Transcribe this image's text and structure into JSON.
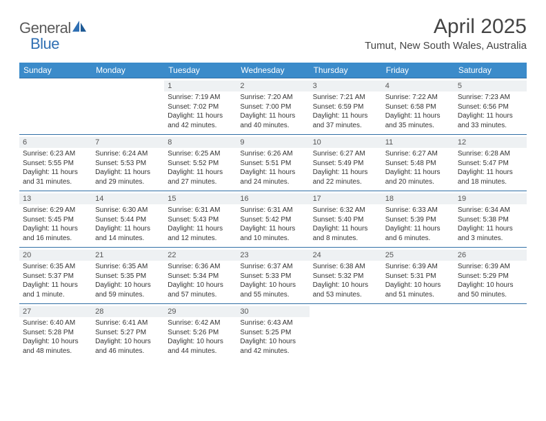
{
  "logo": {
    "part1": "General",
    "part2": "Blue"
  },
  "title": "April 2025",
  "location": "Tumut, New South Wales, Australia",
  "colors": {
    "header_bg": "#3b8bca",
    "header_text": "#ffffff",
    "row_border": "#2e6da4",
    "daynum_bg": "#eef1f3",
    "body_text": "#333333",
    "logo_grey": "#5a5a5a",
    "logo_blue": "#2f6fb3",
    "background": "#ffffff"
  },
  "typography": {
    "title_fontsize": 30,
    "location_fontsize": 15,
    "weekday_fontsize": 12,
    "daynum_fontsize": 11,
    "cell_fontsize": 10
  },
  "weekdays": [
    "Sunday",
    "Monday",
    "Tuesday",
    "Wednesday",
    "Thursday",
    "Friday",
    "Saturday"
  ],
  "weeks": [
    [
      {
        "day": "",
        "sunrise": "",
        "sunset": "",
        "daylight1": "",
        "daylight2": "",
        "empty": true
      },
      {
        "day": "",
        "sunrise": "",
        "sunset": "",
        "daylight1": "",
        "daylight2": "",
        "empty": true
      },
      {
        "day": "1",
        "sunrise": "Sunrise: 7:19 AM",
        "sunset": "Sunset: 7:02 PM",
        "daylight1": "Daylight: 11 hours",
        "daylight2": "and 42 minutes."
      },
      {
        "day": "2",
        "sunrise": "Sunrise: 7:20 AM",
        "sunset": "Sunset: 7:00 PM",
        "daylight1": "Daylight: 11 hours",
        "daylight2": "and 40 minutes."
      },
      {
        "day": "3",
        "sunrise": "Sunrise: 7:21 AM",
        "sunset": "Sunset: 6:59 PM",
        "daylight1": "Daylight: 11 hours",
        "daylight2": "and 37 minutes."
      },
      {
        "day": "4",
        "sunrise": "Sunrise: 7:22 AM",
        "sunset": "Sunset: 6:58 PM",
        "daylight1": "Daylight: 11 hours",
        "daylight2": "and 35 minutes."
      },
      {
        "day": "5",
        "sunrise": "Sunrise: 7:23 AM",
        "sunset": "Sunset: 6:56 PM",
        "daylight1": "Daylight: 11 hours",
        "daylight2": "and 33 minutes."
      }
    ],
    [
      {
        "day": "6",
        "sunrise": "Sunrise: 6:23 AM",
        "sunset": "Sunset: 5:55 PM",
        "daylight1": "Daylight: 11 hours",
        "daylight2": "and 31 minutes."
      },
      {
        "day": "7",
        "sunrise": "Sunrise: 6:24 AM",
        "sunset": "Sunset: 5:53 PM",
        "daylight1": "Daylight: 11 hours",
        "daylight2": "and 29 minutes."
      },
      {
        "day": "8",
        "sunrise": "Sunrise: 6:25 AM",
        "sunset": "Sunset: 5:52 PM",
        "daylight1": "Daylight: 11 hours",
        "daylight2": "and 27 minutes."
      },
      {
        "day": "9",
        "sunrise": "Sunrise: 6:26 AM",
        "sunset": "Sunset: 5:51 PM",
        "daylight1": "Daylight: 11 hours",
        "daylight2": "and 24 minutes."
      },
      {
        "day": "10",
        "sunrise": "Sunrise: 6:27 AM",
        "sunset": "Sunset: 5:49 PM",
        "daylight1": "Daylight: 11 hours",
        "daylight2": "and 22 minutes."
      },
      {
        "day": "11",
        "sunrise": "Sunrise: 6:27 AM",
        "sunset": "Sunset: 5:48 PM",
        "daylight1": "Daylight: 11 hours",
        "daylight2": "and 20 minutes."
      },
      {
        "day": "12",
        "sunrise": "Sunrise: 6:28 AM",
        "sunset": "Sunset: 5:47 PM",
        "daylight1": "Daylight: 11 hours",
        "daylight2": "and 18 minutes."
      }
    ],
    [
      {
        "day": "13",
        "sunrise": "Sunrise: 6:29 AM",
        "sunset": "Sunset: 5:45 PM",
        "daylight1": "Daylight: 11 hours",
        "daylight2": "and 16 minutes."
      },
      {
        "day": "14",
        "sunrise": "Sunrise: 6:30 AM",
        "sunset": "Sunset: 5:44 PM",
        "daylight1": "Daylight: 11 hours",
        "daylight2": "and 14 minutes."
      },
      {
        "day": "15",
        "sunrise": "Sunrise: 6:31 AM",
        "sunset": "Sunset: 5:43 PM",
        "daylight1": "Daylight: 11 hours",
        "daylight2": "and 12 minutes."
      },
      {
        "day": "16",
        "sunrise": "Sunrise: 6:31 AM",
        "sunset": "Sunset: 5:42 PM",
        "daylight1": "Daylight: 11 hours",
        "daylight2": "and 10 minutes."
      },
      {
        "day": "17",
        "sunrise": "Sunrise: 6:32 AM",
        "sunset": "Sunset: 5:40 PM",
        "daylight1": "Daylight: 11 hours",
        "daylight2": "and 8 minutes."
      },
      {
        "day": "18",
        "sunrise": "Sunrise: 6:33 AM",
        "sunset": "Sunset: 5:39 PM",
        "daylight1": "Daylight: 11 hours",
        "daylight2": "and 6 minutes."
      },
      {
        "day": "19",
        "sunrise": "Sunrise: 6:34 AM",
        "sunset": "Sunset: 5:38 PM",
        "daylight1": "Daylight: 11 hours",
        "daylight2": "and 3 minutes."
      }
    ],
    [
      {
        "day": "20",
        "sunrise": "Sunrise: 6:35 AM",
        "sunset": "Sunset: 5:37 PM",
        "daylight1": "Daylight: 11 hours",
        "daylight2": "and 1 minute."
      },
      {
        "day": "21",
        "sunrise": "Sunrise: 6:35 AM",
        "sunset": "Sunset: 5:35 PM",
        "daylight1": "Daylight: 10 hours",
        "daylight2": "and 59 minutes."
      },
      {
        "day": "22",
        "sunrise": "Sunrise: 6:36 AM",
        "sunset": "Sunset: 5:34 PM",
        "daylight1": "Daylight: 10 hours",
        "daylight2": "and 57 minutes."
      },
      {
        "day": "23",
        "sunrise": "Sunrise: 6:37 AM",
        "sunset": "Sunset: 5:33 PM",
        "daylight1": "Daylight: 10 hours",
        "daylight2": "and 55 minutes."
      },
      {
        "day": "24",
        "sunrise": "Sunrise: 6:38 AM",
        "sunset": "Sunset: 5:32 PM",
        "daylight1": "Daylight: 10 hours",
        "daylight2": "and 53 minutes."
      },
      {
        "day": "25",
        "sunrise": "Sunrise: 6:39 AM",
        "sunset": "Sunset: 5:31 PM",
        "daylight1": "Daylight: 10 hours",
        "daylight2": "and 51 minutes."
      },
      {
        "day": "26",
        "sunrise": "Sunrise: 6:39 AM",
        "sunset": "Sunset: 5:29 PM",
        "daylight1": "Daylight: 10 hours",
        "daylight2": "and 50 minutes."
      }
    ],
    [
      {
        "day": "27",
        "sunrise": "Sunrise: 6:40 AM",
        "sunset": "Sunset: 5:28 PM",
        "daylight1": "Daylight: 10 hours",
        "daylight2": "and 48 minutes."
      },
      {
        "day": "28",
        "sunrise": "Sunrise: 6:41 AM",
        "sunset": "Sunset: 5:27 PM",
        "daylight1": "Daylight: 10 hours",
        "daylight2": "and 46 minutes."
      },
      {
        "day": "29",
        "sunrise": "Sunrise: 6:42 AM",
        "sunset": "Sunset: 5:26 PM",
        "daylight1": "Daylight: 10 hours",
        "daylight2": "and 44 minutes."
      },
      {
        "day": "30",
        "sunrise": "Sunrise: 6:43 AM",
        "sunset": "Sunset: 5:25 PM",
        "daylight1": "Daylight: 10 hours",
        "daylight2": "and 42 minutes."
      },
      {
        "day": "",
        "sunrise": "",
        "sunset": "",
        "daylight1": "",
        "daylight2": "",
        "empty": true
      },
      {
        "day": "",
        "sunrise": "",
        "sunset": "",
        "daylight1": "",
        "daylight2": "",
        "empty": true
      },
      {
        "day": "",
        "sunrise": "",
        "sunset": "",
        "daylight1": "",
        "daylight2": "",
        "empty": true
      }
    ]
  ]
}
